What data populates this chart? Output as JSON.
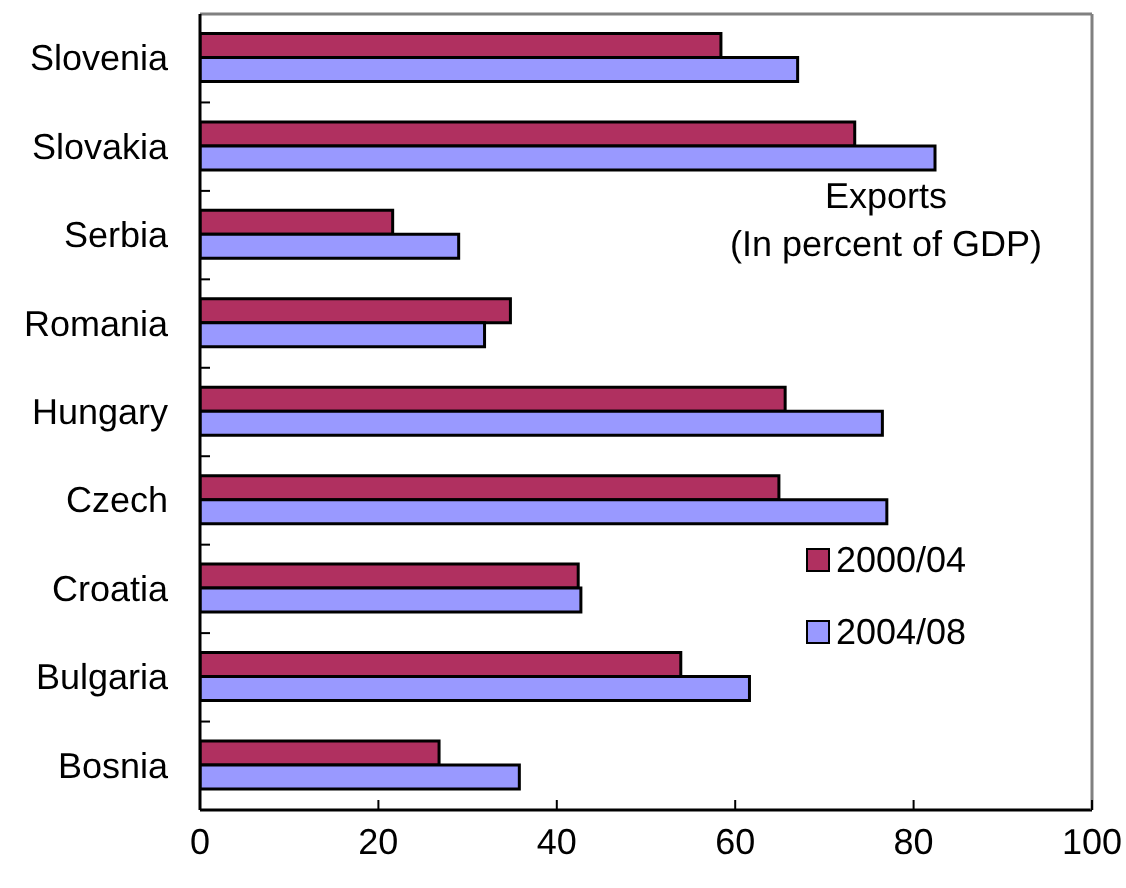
{
  "chart_data": {
    "type": "bar",
    "orientation": "horizontal",
    "title": "Exports",
    "subtitle": "(In percent of GDP)",
    "categories": [
      "Slovenia",
      "Slovakia",
      "Serbia",
      "Romania",
      "Hungary",
      "Czech",
      "Croatia",
      "Bulgaria",
      "Bosnia"
    ],
    "series": [
      {
        "name": "2000/04",
        "color": "#b03060",
        "values": [
          58.4,
          73.4,
          21.6,
          34.8,
          65.6,
          64.9,
          42.4,
          53.9,
          26.8
        ]
      },
      {
        "name": "2004/08",
        "color": "#9999ff",
        "values": [
          67.0,
          82.4,
          29.0,
          31.9,
          76.5,
          77.0,
          42.7,
          61.6,
          35.8
        ]
      }
    ],
    "xlim": [
      0,
      100
    ],
    "xticks": [
      0,
      20,
      40,
      60,
      80,
      100
    ],
    "legend": "right"
  }
}
